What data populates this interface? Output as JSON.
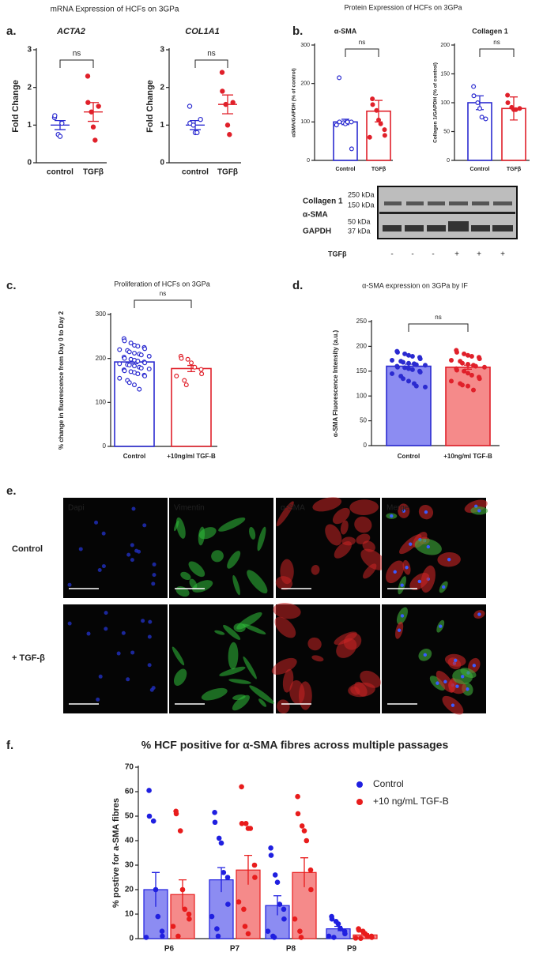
{
  "panels": [
    "a.",
    "b.",
    "c.",
    "d.",
    "e.",
    "f."
  ],
  "headers": {
    "a": "mRNA Expression of HCFs on 3GPa",
    "b": "Protein Expression of HCFs on 3GPa"
  },
  "blot": {
    "rows": [
      "Collagen 1",
      "α-SMA",
      "GAPDH"
    ],
    "markers": [
      "250 kDa",
      "150 kDa",
      "50 kDa",
      "37 kDa"
    ],
    "treatment_label": "TGFβ",
    "treatment": [
      "-",
      "-",
      "-",
      "+",
      "+",
      "+"
    ]
  },
  "micrographs": {
    "channels": [
      "Dapi",
      "Vimentin",
      "α-SMA",
      "Merge"
    ],
    "conditions": [
      "Control",
      "+ TGF-β"
    ]
  },
  "chart_data": [
    {
      "type": "dot",
      "title": "ACTA2",
      "ylabel": "Fold Change",
      "ylim": [
        0,
        3
      ],
      "yticks": [
        0,
        1,
        2,
        3
      ],
      "annotation": "ns",
      "series": [
        {
          "name": "control",
          "color": "#2b2bd0",
          "marker": "open",
          "mean": 1.0,
          "sem": 0.12,
          "points": [
            1.2,
            1.25,
            0.75,
            0.7,
            1.05
          ]
        },
        {
          "name": "TGFβ",
          "color": "#e0202a",
          "marker": "filled",
          "mean": 1.35,
          "sem": 0.25,
          "points": [
            2.3,
            1.6,
            1.35,
            0.95,
            0.6,
            1.5
          ]
        }
      ]
    },
    {
      "type": "dot",
      "title": "COL1A1",
      "ylabel": "Fold Change",
      "ylim": [
        0,
        3
      ],
      "yticks": [
        0,
        1,
        2,
        3
      ],
      "annotation": "ns",
      "series": [
        {
          "name": "control",
          "color": "#2b2bd0",
          "marker": "open",
          "mean": 1.0,
          "sem": 0.12,
          "points": [
            1.5,
            1.05,
            1.0,
            0.8,
            0.8,
            1.15
          ]
        },
        {
          "name": "TGFβ",
          "color": "#e0202a",
          "marker": "filled",
          "mean": 1.55,
          "sem": 0.25,
          "points": [
            2.4,
            1.9,
            1.55,
            1.0,
            0.75,
            1.6
          ]
        }
      ]
    },
    {
      "type": "bar",
      "title": "α-SMA",
      "ylabel": "αSMA/GAPDH (% of control)",
      "ylim": [
        0,
        300
      ],
      "yticks": [
        0,
        100,
        200,
        300
      ],
      "annotation": "ns",
      "series": [
        {
          "name": "Control",
          "color": "#2b2bd0",
          "marker": "open",
          "mean": 100,
          "sem": 7,
          "points": [
            215,
            100,
            98,
            95,
            100,
            100,
            30,
            92
          ]
        },
        {
          "name": "TGFβ",
          "color": "#e0202a",
          "marker": "filled",
          "mean": 128,
          "sem": 28,
          "points": [
            160,
            145,
            130,
            105,
            95,
            80,
            65,
            60
          ]
        }
      ]
    },
    {
      "type": "bar",
      "title": "Collagen 1",
      "ylabel": "Collagen 1/GAPDH (% of control)",
      "ylim": [
        0,
        200
      ],
      "yticks": [
        0,
        50,
        100,
        150,
        200
      ],
      "annotation": "ns",
      "series": [
        {
          "name": "Control",
          "color": "#2b2bd0",
          "marker": "open",
          "mean": 100,
          "sem": 12,
          "points": [
            128,
            112,
            100,
            90,
            75,
            72
          ]
        },
        {
          "name": "TGFβ",
          "color": "#e0202a",
          "marker": "filled",
          "mean": 90,
          "sem": 20,
          "points": [
            113,
            100,
            92,
            88,
            88,
            90
          ]
        }
      ]
    },
    {
      "type": "bar",
      "title": "Proliferation of HCFs on 3GPa",
      "ylabel": "% change in fluorescence from Day 0 to Day 2",
      "ylim": [
        0,
        300
      ],
      "yticks": [
        0,
        100,
        200,
        300
      ],
      "annotation": "ns",
      "series": [
        {
          "name": "Control",
          "color": "#2b2bd0",
          "marker": "open",
          "mean": 192,
          "sem": 4,
          "points": [
            245,
            240,
            235,
            230,
            228,
            225,
            222,
            220,
            218,
            215,
            212,
            210,
            208,
            205,
            203,
            200,
            198,
            196,
            194,
            192,
            190,
            188,
            186,
            185,
            183,
            180,
            178,
            176,
            174,
            172,
            170,
            168,
            165,
            162,
            160,
            155,
            150,
            145,
            140,
            130
          ]
        },
        {
          "name": "+10ng/ml TGF-B",
          "color": "#e0202a",
          "marker": "open",
          "mean": 177,
          "sem": 7,
          "points": [
            205,
            200,
            198,
            190,
            180,
            175,
            165,
            160,
            150,
            140
          ]
        }
      ]
    },
    {
      "type": "bar",
      "title": "α-SMA expression on 3GPa by IF",
      "ylabel": "α-SMA Fluorescence Intensity (a.u.)",
      "ylim": [
        0,
        250
      ],
      "yticks": [
        0,
        50,
        100,
        150,
        200,
        250
      ],
      "annotation": "ns",
      "series": [
        {
          "name": "Control",
          "color": "#2b2bd0",
          "fill": "#8c8cf2",
          "marker": "filled",
          "mean": 160,
          "sem": 4,
          "points": [
            190,
            188,
            185,
            182,
            180,
            178,
            175,
            172,
            170,
            168,
            166,
            165,
            163,
            162,
            160,
            158,
            157,
            155,
            153,
            150,
            148,
            145,
            140,
            135,
            130,
            125,
            120,
            118
          ]
        },
        {
          "name": "+10ng/ml TGF-B",
          "color": "#e0202a",
          "fill": "#f58a8a",
          "marker": "filled",
          "mean": 158,
          "sem": 4,
          "points": [
            192,
            188,
            185,
            182,
            180,
            178,
            175,
            172,
            170,
            166,
            164,
            162,
            160,
            158,
            155,
            152,
            150,
            146,
            142,
            138,
            135,
            130,
            125,
            122,
            120,
            112
          ]
        }
      ]
    },
    {
      "type": "grouped_bar",
      "title": "% HCF positive for α-SMA fibres across multiple passages",
      "ylabel": "% postive for a-SMA fibres",
      "ylim": [
        0,
        70
      ],
      "yticks": [
        0,
        10,
        20,
        30,
        40,
        50,
        60,
        70
      ],
      "categories": [
        "P6",
        "P7",
        "P8",
        "P9"
      ],
      "series": [
        {
          "name": "Control",
          "color": "#1f1fe0",
          "fill": "#8c8cf2",
          "values": [
            20,
            24,
            13.5,
            4
          ],
          "errors": [
            7,
            5,
            4,
            1
          ],
          "points": [
            [
              60.5,
              50,
              48,
              20,
              9,
              3,
              1,
              0.5
            ],
            [
              51.5,
              47.5,
              41,
              39,
              27,
              25,
              14,
              9,
              4,
              1
            ],
            [
              37,
              34,
              26,
              23,
              14,
              12,
              8,
              3,
              1,
              0.5
            ],
            [
              9,
              8,
              7,
              6,
              4,
              3,
              2,
              1,
              0.5
            ]
          ]
        },
        {
          "name": "+10 ng/mL TGF-B",
          "color": "#e81c1c",
          "fill": "#f58a8a",
          "values": [
            18,
            28,
            27,
            1.5
          ],
          "errors": [
            6,
            6,
            6,
            0.5
          ],
          "points": [
            [
              52,
              51,
              44,
              20,
              12,
              10,
              8,
              5,
              1
            ],
            [
              62,
              47,
              47,
              45,
              45,
              30,
              25,
              15,
              12,
              5,
              2
            ],
            [
              58,
              51,
              46,
              44,
              40,
              28,
              20,
              8,
              3,
              0.5
            ],
            [
              4,
              3.5,
              3,
              2,
              1,
              1,
              0.5,
              0.2,
              0.1
            ]
          ]
        }
      ]
    }
  ]
}
